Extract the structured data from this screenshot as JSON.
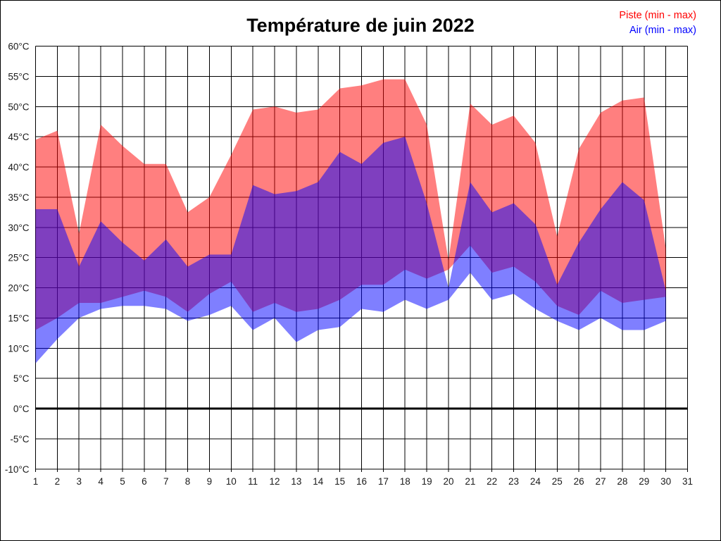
{
  "page": {
    "background": "#ffffff",
    "border_color": "#000000"
  },
  "chart_data": {
    "type": "area",
    "title": "Température de juin 2022",
    "legend_position": "top-right",
    "grid": true,
    "legend": [
      {
        "label": "Piste (min - max)",
        "color": "#ff0000"
      },
      {
        "label": "Air (min - max)",
        "color": "#0000ff"
      }
    ],
    "x_axis": {
      "tick_labels": [
        1,
        2,
        3,
        4,
        5,
        6,
        7,
        8,
        9,
        10,
        11,
        12,
        13,
        14,
        15,
        16,
        17,
        18,
        19,
        20,
        21,
        22,
        23,
        24,
        25,
        26,
        27,
        28,
        29,
        30,
        31
      ],
      "data_days": 30
    },
    "y_axis": {
      "min": -10,
      "max": 60,
      "step": 5,
      "unit": "°C",
      "bold_line_at": 0,
      "tick_label_format": "{value}°C"
    },
    "series": [
      {
        "name": "Piste",
        "fill": "#ff0000",
        "fill_opacity": 0.5,
        "min": [
          13,
          15,
          17.5,
          17.5,
          18.5,
          19.5,
          18.5,
          16,
          19,
          21,
          16,
          17.5,
          16,
          16.5,
          18,
          20.5,
          20.5,
          23,
          21.5,
          23,
          27,
          22.5,
          23.5,
          21,
          17,
          15.5,
          19.5,
          17.5,
          18,
          18.5
        ],
        "max": [
          44.5,
          46,
          29,
          47,
          43.5,
          40.5,
          40.5,
          32.5,
          35,
          42,
          49.5,
          50,
          49,
          49.5,
          53,
          53.5,
          54.5,
          54.5,
          47,
          24.5,
          50.5,
          47,
          48.5,
          44,
          28.5,
          43,
          49,
          51,
          51.5,
          26.5
        ]
      },
      {
        "name": "Air",
        "fill": "#0000ff",
        "fill_opacity": 0.5,
        "min": [
          7.5,
          11.5,
          15,
          16.5,
          17,
          17,
          16.5,
          14.5,
          15.5,
          17,
          13,
          15,
          11,
          13,
          13.5,
          16.5,
          16,
          18,
          16.5,
          18,
          22.5,
          18,
          19,
          16.5,
          14.5,
          13,
          15,
          13,
          13,
          14.5
        ],
        "max": [
          33,
          33,
          23.5,
          31,
          27.5,
          24.5,
          28,
          23.5,
          25.5,
          25.5,
          37,
          35.5,
          36,
          37.5,
          42.5,
          40.5,
          44,
          45,
          34,
          20,
          37.5,
          32.5,
          34,
          30.5,
          20.5,
          27.5,
          33,
          37.5,
          34.5,
          19.5
        ]
      }
    ]
  }
}
